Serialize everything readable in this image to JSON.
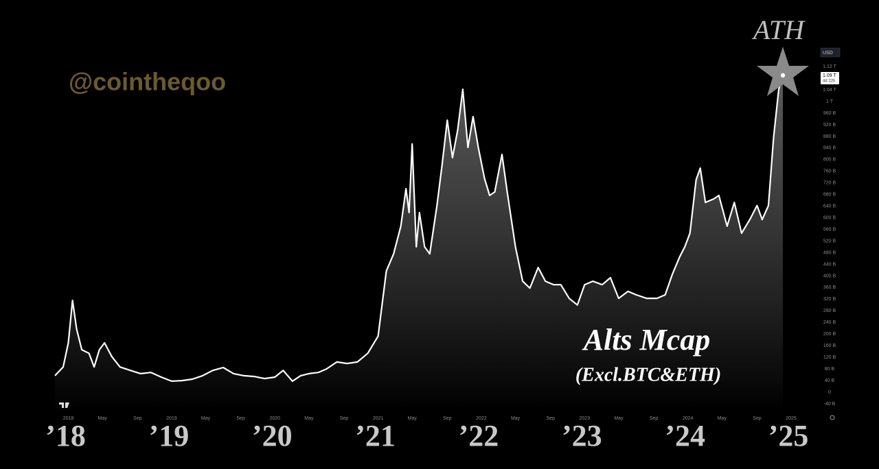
{
  "chart_data": {
    "type": "area",
    "title": "Alts Mcap",
    "subtitle": "(Excl.BTC&ETH)",
    "annotation": "ATH",
    "watermark": "@cointheqoo",
    "currency": "USD",
    "last_price_label": "1.09 T",
    "countdown": "4d 22h",
    "color": "#ffffff",
    "x": [
      2017.87,
      2017.95,
      2018.0,
      2018.04,
      2018.08,
      2018.13,
      2018.2,
      2018.25,
      2018.3,
      2018.35,
      2018.42,
      2018.5,
      2018.6,
      2018.7,
      2018.8,
      2018.9,
      2019.0,
      2019.1,
      2019.2,
      2019.3,
      2019.4,
      2019.5,
      2019.6,
      2019.7,
      2019.8,
      2019.9,
      2020.0,
      2020.08,
      2020.17,
      2020.25,
      2020.33,
      2020.42,
      2020.5,
      2020.6,
      2020.7,
      2020.8,
      2020.9,
      2021.0,
      2021.08,
      2021.15,
      2021.22,
      2021.27,
      2021.3,
      2021.33,
      2021.37,
      2021.4,
      2021.45,
      2021.5,
      2021.57,
      2021.62,
      2021.67,
      2021.72,
      2021.77,
      2021.82,
      2021.87,
      2021.92,
      2021.97,
      2022.03,
      2022.08,
      2022.13,
      2022.2,
      2022.25,
      2022.33,
      2022.4,
      2022.47,
      2022.55,
      2022.62,
      2022.7,
      2022.77,
      2022.85,
      2022.93,
      2023.0,
      2023.08,
      2023.17,
      2023.25,
      2023.33,
      2023.42,
      2023.5,
      2023.6,
      2023.7,
      2023.78,
      2023.85,
      2023.92,
      2023.97,
      2024.02,
      2024.08,
      2024.12,
      2024.17,
      2024.25,
      2024.3,
      2024.38,
      2024.45,
      2024.52,
      2024.6,
      2024.67,
      2024.72,
      2024.78,
      2024.83,
      2024.88,
      2024.92
    ],
    "values": [
      57,
      87,
      170,
      316,
      217,
      146,
      134,
      87,
      146,
      170,
      123,
      87,
      75,
      64,
      68,
      52,
      38,
      40,
      45,
      57,
      75,
      85,
      64,
      57,
      54,
      47,
      52,
      75,
      38,
      57,
      64,
      68,
      80,
      104,
      99,
      104,
      134,
      193,
      417,
      476,
      571,
      700,
      618,
      854,
      500,
      618,
      500,
      476,
      642,
      783,
      936,
      807,
      901,
      1042,
      842,
      948,
      842,
      736,
      677,
      689,
      818,
      689,
      500,
      382,
      358,
      429,
      382,
      370,
      370,
      323,
      300,
      370,
      382,
      370,
      394,
      323,
      347,
      335,
      323,
      323,
      335,
      406,
      465,
      500,
      547,
      731,
      771,
      653,
      665,
      677,
      571,
      653,
      547,
      594,
      642,
      594,
      642,
      877,
      1042,
      1090
    ],
    "xlim": [
      2017.87,
      2024.92
    ],
    "xticks": [
      2018,
      {
        "value": 2018.33,
        "label": "May"
      },
      {
        "value": 2018.67,
        "label": "Sep"
      },
      2019,
      {
        "value": 2019.33,
        "label": "May"
      },
      {
        "value": 2019.67,
        "label": "Sep"
      },
      2020,
      {
        "value": 2020.33,
        "label": "May"
      },
      {
        "value": 2020.67,
        "label": "Sep"
      },
      2021,
      {
        "value": 2021.33,
        "label": "May"
      },
      {
        "value": 2021.67,
        "label": "Sep"
      },
      2022,
      {
        "value": 2022.33,
        "label": "May"
      },
      {
        "value": 2022.67,
        "label": "Sep"
      },
      2023,
      {
        "value": 2023.33,
        "label": "May"
      },
      {
        "value": 2023.67,
        "label": "Sep"
      },
      2024,
      {
        "value": 2024.33,
        "label": "May"
      },
      {
        "value": 2024.67,
        "label": "Sep"
      },
      2025
    ],
    "big_xticks": [
      {
        "value": 2018,
        "label": "’18"
      },
      {
        "value": 2019,
        "label": "’19"
      },
      {
        "value": 2020,
        "label": "’20"
      },
      {
        "value": 2021,
        "label": "’21"
      },
      {
        "value": 2022,
        "label": "’22"
      },
      {
        "value": 2023,
        "label": "’23"
      },
      {
        "value": 2024,
        "label": "’24"
      },
      {
        "value": 2025,
        "label": "’25"
      }
    ],
    "ylim": [
      -40,
      1160
    ],
    "yticks": [
      {
        "value": -40,
        "label": "-40 B"
      },
      0,
      {
        "value": 40,
        "label": "40 B"
      },
      {
        "value": 80,
        "label": "80 B"
      },
      {
        "value": 120,
        "label": "120 B"
      },
      {
        "value": 160,
        "label": "160 B"
      },
      {
        "value": 200,
        "label": "200 B"
      },
      {
        "value": 240,
        "label": "240 B"
      },
      {
        "value": 280,
        "label": "280 B"
      },
      {
        "value": 320,
        "label": "320 B"
      },
      {
        "value": 360,
        "label": "360 B"
      },
      {
        "value": 400,
        "label": "400 B"
      },
      {
        "value": 440,
        "label": "440 B"
      },
      {
        "value": 480,
        "label": "480 B"
      },
      {
        "value": 520,
        "label": "520 B"
      },
      {
        "value": 560,
        "label": "560 B"
      },
      {
        "value": 600,
        "label": "600 B"
      },
      {
        "value": 640,
        "label": "640 B"
      },
      {
        "value": 680,
        "label": "680 B"
      },
      {
        "value": 720,
        "label": "720 B"
      },
      {
        "value": 760,
        "label": "760 B"
      },
      {
        "value": 800,
        "label": "800 B"
      },
      {
        "value": 840,
        "label": "840 B"
      },
      {
        "value": 880,
        "label": "880 B"
      },
      {
        "value": 920,
        "label": "920 B"
      },
      {
        "value": 960,
        "label": "960 B"
      },
      {
        "value": 1000,
        "label": "1 T"
      },
      {
        "value": 1040,
        "label": "1.04 T"
      },
      {
        "value": 1120,
        "label": "1.12 T"
      }
    ],
    "grid": false
  }
}
